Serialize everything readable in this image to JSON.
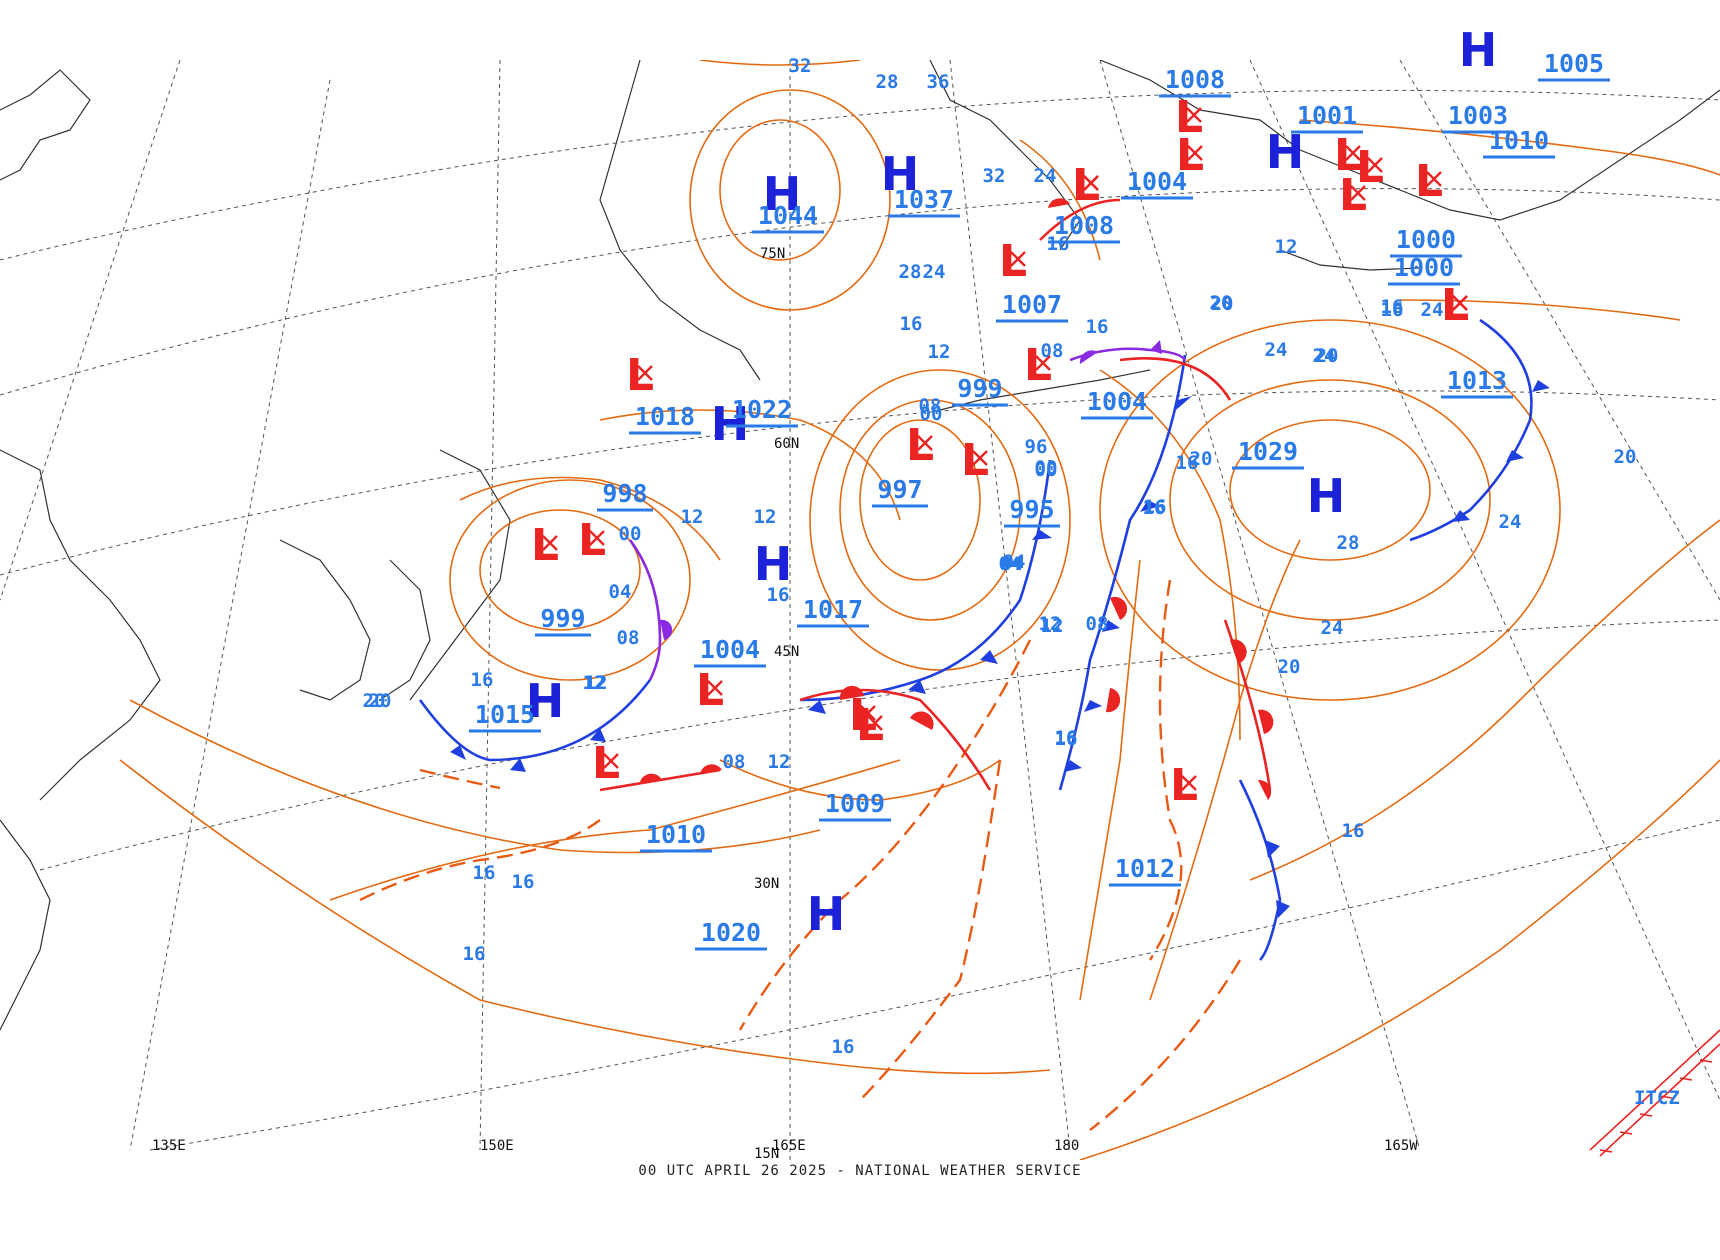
{
  "footer": "00 UTC APRIL 26 2025 - NATIONAL WEATHER SERVICE",
  "colors": {
    "isobar": "#e46a12",
    "high": "#1b22d8",
    "low": "#ea2323",
    "pressure_label": "#2a7ae8",
    "cold_front": "#1f3fe0",
    "warm_front": "#ea2323",
    "occluded_front": "#8a2be2",
    "trough": "#e85a14",
    "station_dewpoint": "#d23ad2",
    "station_temp": "#1aa874",
    "coast": "#333333",
    "grid": "#555555"
  },
  "grid_labels": {
    "lon": [
      "135E",
      "150E",
      "165E",
      "180",
      "165W"
    ],
    "lat": [
      "15N",
      "30N",
      "45N",
      "60N",
      "75N"
    ]
  },
  "highs": [
    {
      "label": "1044"
    },
    {
      "label": "1037"
    },
    {
      "label": "1022"
    },
    {
      "label": "1029"
    },
    {
      "label": ""
    },
    {
      "label": "1015"
    },
    {
      "label": ""
    },
    {
      "label": "1020"
    },
    {
      "label": ""
    },
    {
      "label": "1005"
    }
  ],
  "lows": [
    {
      "label": "1018"
    },
    {
      "label": "998"
    },
    {
      "label": "999"
    },
    {
      "label": "1004"
    },
    {
      "label": "1009"
    },
    {
      "label": "1010"
    },
    {
      "label": "997"
    },
    {
      "label": "999"
    },
    {
      "label": "995"
    },
    {
      "label": "1007"
    },
    {
      "label": "1004"
    },
    {
      "label": "1008"
    },
    {
      "label": "1004"
    },
    {
      "label": "1008"
    },
    {
      "label": "1001"
    },
    {
      "label": "1003"
    },
    {
      "label": "1010"
    },
    {
      "label": "1000"
    },
    {
      "label": "1000"
    },
    {
      "label": "1013"
    },
    {
      "label": "1012"
    },
    {
      "label": "1017"
    }
  ],
  "isobar_labels": [
    "32",
    "28",
    "36",
    "32",
    "24",
    "16",
    "28",
    "24",
    "16",
    "12",
    "08",
    "08",
    "04",
    "00",
    "00",
    "96",
    "00",
    "04",
    "12",
    "16",
    "20",
    "24",
    "24",
    "16",
    "20",
    "16",
    "16",
    "24",
    "28",
    "20",
    "24",
    "20",
    "16",
    "20",
    "16",
    "12",
    "08",
    "04",
    "00",
    "20",
    "16",
    "12",
    "16",
    "16",
    "16",
    "16",
    "16",
    "12",
    "08",
    "04",
    "16",
    "12",
    "08",
    "12",
    "12",
    "20",
    "16",
    "24",
    "12",
    "16",
    "20"
  ],
  "itcz_label": "ITCZ"
}
